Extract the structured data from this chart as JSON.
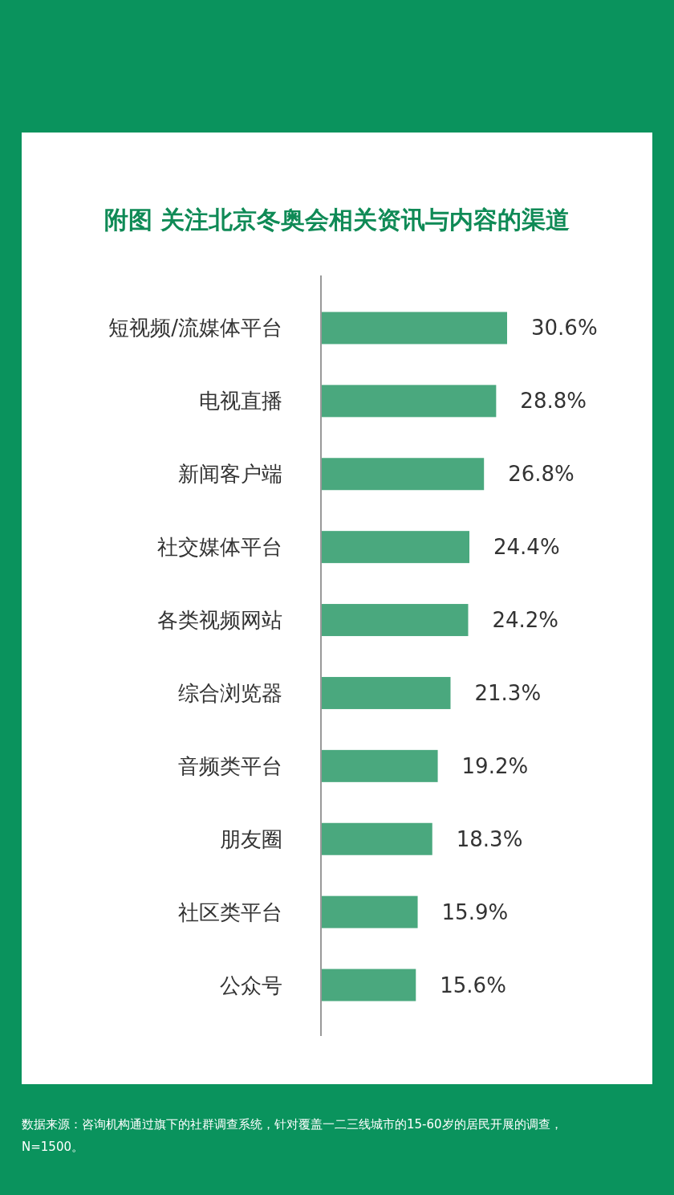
{
  "chart_data": {
    "type": "bar",
    "orientation": "horizontal",
    "title": "附图 关注北京冬奥会相关资讯与内容的渠道",
    "categories": [
      "短视频/流媒体平台",
      "电视直播",
      "新闻客户端",
      "社交媒体平台",
      "各类视频网站",
      "综合浏览器",
      "音频类平台",
      "朋友圈",
      "社区类平台",
      "公众号"
    ],
    "values": [
      30.6,
      28.8,
      26.8,
      24.4,
      24.2,
      21.3,
      19.2,
      18.3,
      15.9,
      15.6
    ],
    "value_labels": [
      "30.6%",
      "28.8%",
      "26.8%",
      "24.4%",
      "24.2%",
      "21.3%",
      "19.2%",
      "18.3%",
      "15.9%",
      "15.6%"
    ],
    "color": "#4aa87e",
    "annotations": [
      "数据来源：咨询机构通过旗下的社群调查系统，针对覆盖一二三线城市的15-60岁的居民开展的调查，N=1500。"
    ]
  }
}
